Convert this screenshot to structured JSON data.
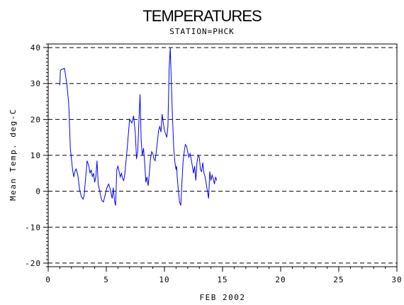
{
  "chart_data": {
    "type": "line",
    "title": "TEMPERATURES",
    "subtitle": "STATION=PHCK",
    "xlabel": "FEB 2002",
    "ylabel": "Mean Temp. deg-C",
    "xlim": [
      0,
      30
    ],
    "ylim": [
      -21,
      41
    ],
    "x_ticks": [
      0,
      5,
      10,
      15,
      20,
      25,
      30
    ],
    "y_ticks": [
      -20,
      -10,
      0,
      10,
      20,
      30,
      40
    ],
    "y_tick_labels": [
      "-20",
      "-10",
      "0",
      "10",
      "20",
      "30",
      "40"
    ],
    "grid": "horizontal-dashed",
    "line_color": "#0000ff",
    "series": [
      {
        "x": [
          1.0,
          1.05,
          1.1,
          1.2,
          1.4,
          1.6,
          1.75,
          1.8,
          1.9,
          2.0,
          2.1,
          2.2,
          2.3,
          2.4,
          2.55,
          2.7,
          2.85,
          3.0,
          3.1,
          3.2,
          3.35,
          3.5,
          3.6,
          3.7,
          3.8,
          3.9,
          4.0,
          4.1,
          4.2,
          4.3,
          4.4,
          4.5,
          4.6,
          4.75,
          4.9,
          5.05,
          5.2,
          5.35,
          5.5,
          5.6,
          5.7,
          5.8,
          5.9,
          6.0,
          6.1,
          6.2,
          6.3,
          6.4,
          6.5,
          6.6,
          6.8,
          7.0,
          7.2,
          7.35,
          7.5,
          7.6,
          7.7,
          7.8,
          7.9,
          8.0,
          8.1,
          8.2,
          8.3,
          8.4,
          8.5,
          8.6,
          8.7,
          8.8,
          8.9,
          9.0,
          9.1,
          9.2,
          9.3,
          9.4,
          9.5,
          9.6,
          9.7,
          9.8,
          9.9,
          10.0,
          10.1,
          10.2,
          10.3,
          10.4,
          10.5,
          10.6,
          10.7,
          10.8,
          10.9,
          11.0,
          11.05,
          11.1,
          11.2,
          11.3,
          11.4,
          11.5,
          11.6,
          11.7,
          11.8,
          11.9,
          12.0,
          12.1,
          12.2,
          12.3,
          12.4,
          12.5,
          12.6,
          12.7,
          12.8,
          12.9,
          13.0,
          13.1,
          13.2,
          13.3,
          13.4,
          13.5,
          13.6,
          13.7,
          13.8,
          13.9,
          14.0,
          14.1,
          14.2,
          14.3,
          14.4,
          14.5
        ],
        "y": [
          29.5,
          33.5,
          33.8,
          34.0,
          34.2,
          30.0,
          25.0,
          22.0,
          12.0,
          9.0,
          6.0,
          4.0,
          5.5,
          6.2,
          4.5,
          0.5,
          -1.5,
          -2.2,
          -1.0,
          3.0,
          8.5,
          7.0,
          5.0,
          6.0,
          4.0,
          5.0,
          2.5,
          4.0,
          8.5,
          2.0,
          0.5,
          -1.0,
          -2.5,
          -3.0,
          -1.0,
          1.0,
          2.0,
          0.5,
          -2.0,
          1.0,
          -2.5,
          -4.0,
          6.0,
          7.0,
          5.5,
          4.0,
          5.0,
          3.5,
          3.0,
          5.0,
          12.0,
          20.0,
          19.0,
          21.0,
          16.0,
          9.0,
          11.0,
          19.0,
          27.0,
          14.0,
          10.0,
          12.0,
          8.0,
          2.5,
          4.0,
          1.5,
          5.0,
          9.0,
          11.0,
          10.5,
          9.0,
          8.5,
          11.0,
          14.0,
          17.0,
          18.0,
          16.5,
          21.5,
          19.0,
          17.0,
          16.0,
          15.0,
          18.0,
          34.0,
          40.0,
          30.0,
          20.0,
          12.0,
          8.0,
          6.0,
          7.0,
          4.0,
          0.0,
          -3.0,
          -4.0,
          2.0,
          8.0,
          11.0,
          13.0,
          12.5,
          11.0,
          9.5,
          10.5,
          9.0,
          7.0,
          5.0,
          7.0,
          3.0,
          8.0,
          10.0,
          9.5,
          6.0,
          5.5,
          8.0,
          5.0,
          4.0,
          2.0,
          0.0,
          -2.0,
          5.5,
          3.0,
          4.5,
          3.5,
          2.0,
          4.0,
          3.0
        ]
      }
    ]
  }
}
